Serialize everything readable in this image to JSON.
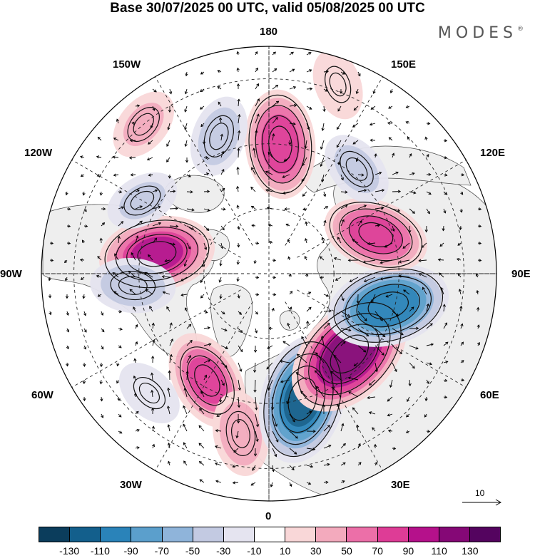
{
  "title": "Base 30/07/2025 00 UTC, valid 05/08/2025 00 UTC",
  "brand": "MODES",
  "brand_mark": "®",
  "longitude_labels": {
    "lon_180": "180",
    "lon_150e": "150E",
    "lon_120e": "120E",
    "lon_90e": "90E",
    "lon_60e": "60E",
    "lon_30e": "30E",
    "lon_0": "0",
    "lon_30w": "30W",
    "lon_60w": "60W",
    "lon_90w": "90W",
    "lon_120w": "120W",
    "lon_150w": "150W"
  },
  "colorbar": {
    "colors": [
      "#0b3d5c",
      "#135f8c",
      "#2a83b9",
      "#5b9fcc",
      "#8fb4da",
      "#c3cae2",
      "#e5e4f0",
      "#ffffff",
      "#f9d7d8",
      "#f3aabd",
      "#ec6fa8",
      "#de3c96",
      "#b5118b",
      "#850876",
      "#54045f"
    ],
    "tick_labels": [
      "-130",
      "-110",
      "-90",
      "-70",
      "-50",
      "-30",
      "-10",
      "10",
      "30",
      "50",
      "70",
      "90",
      "110",
      "130"
    ]
  },
  "reference_vector": {
    "label": "10"
  },
  "anomaly_centers": [
    {
      "lon": -100,
      "lat": 55,
      "value": 90
    },
    {
      "lon": -85,
      "lat": 48,
      "value": -45
    },
    {
      "lon": -30,
      "lat": 52,
      "value": 70
    },
    {
      "lon": -45,
      "lat": 38,
      "value": -25
    },
    {
      "lon": -10,
      "lat": 40,
      "value": 45
    },
    {
      "lon": 15,
      "lat": 50,
      "value": -110
    },
    {
      "lon": 45,
      "lat": 55,
      "value": 120
    },
    {
      "lon": 75,
      "lat": 52,
      "value": -100
    },
    {
      "lon": 110,
      "lat": 55,
      "value": 75
    },
    {
      "lon": 140,
      "lat": 48,
      "value": -35
    },
    {
      "lon": 175,
      "lat": 50,
      "value": 80
    },
    {
      "lon": -160,
      "lat": 45,
      "value": -40
    },
    {
      "lon": -140,
      "lat": 30,
      "value": 30
    },
    {
      "lon": -120,
      "lat": 45,
      "value": -30
    },
    {
      "lon": 160,
      "lat": 28,
      "value": 25
    }
  ]
}
